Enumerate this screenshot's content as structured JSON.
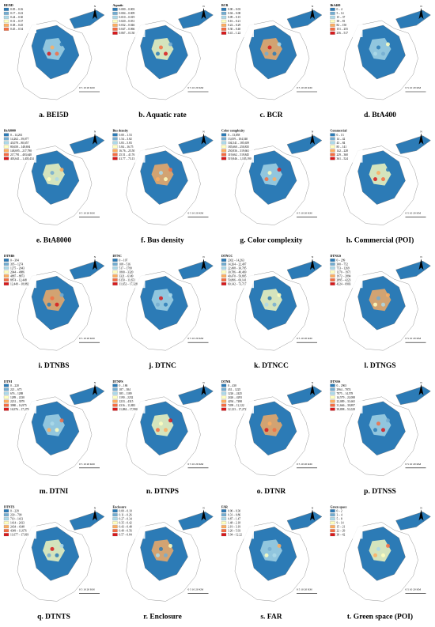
{
  "palette": [
    "#2c7bb6",
    "#74add1",
    "#abd9e9",
    "#ffffbf",
    "#fdae61",
    "#f46d43",
    "#d7191c"
  ],
  "north": "N",
  "scale_bar": "0  5  10      20 KM",
  "panels": [
    {
      "caption": "a. BEI5D",
      "legend_title": "BEI5D",
      "legend": [
        "0.05 – 0.16",
        "0.17 – 0.23",
        "0.24 – 0.30",
        "0.31 – 0.37",
        "0.38 – 0.45",
        "0.45 – 0.54"
      ]
    },
    {
      "caption": "b. Aquatic rate",
      "legend_title": "Aquatic",
      "legend": [
        "0.000 – 0.003",
        "0.004 – 0.009",
        "0.010 – 0.019",
        "0.020 – 0.031",
        "0.032 – 0.046",
        "0.047 – 0.066",
        "0.067 – 0.130"
      ]
    },
    {
      "caption": "c. BCR",
      "legend_title": "BCR",
      "legend": [
        "0.00 – 0.03",
        "0.04 – 0.08",
        "0.09 – 0.15",
        "0.16 – 0.21",
        "0.22 – 0.29",
        "0.30 – 0.40",
        "0.41 – 1.22"
      ]
    },
    {
      "caption": "d. BtA400",
      "legend_title": "BtA400",
      "legend": [
        "0 – 4",
        "5 – 14",
        "15 – 37",
        "38 – 81",
        "82 – 150",
        "151 – 255",
        "256 – 517"
      ]
    },
    {
      "caption": "e. BtA8000",
      "legend_title": "BtA8000",
      "legend": [
        "0 – 14,261",
        "14,262 – 39,077",
        "43,078 – 80,657",
        "80,658 – 148,694",
        "148,695 – 217,790",
        "217,791 – 403,640",
        "403,641 – 1,405,434"
      ]
    },
    {
      "caption": "f. Bus density",
      "legend_title": "Bus density",
      "legend": [
        "0.00 – 1.53",
        "1.54 – 3.82",
        "3.83 – 5.83",
        "5.84 – 16.75",
        "16.76 – 25.50",
        "25.51 – 41.76",
        "41.77 – 73.13"
      ]
    },
    {
      "caption": "g. Color complexity",
      "legend_title": "Color complexity",
      "legend": [
        "0 – 13,058",
        "13,059 – 104,540",
        "104,541 – 185,659",
        "185,660 – 250,835",
        "250,836 – 319,661",
        "319,662 – 519,845",
        "519,846 – 1,105,190"
      ]
    },
    {
      "caption": "h. Commercial (POI)",
      "legend_title": "Commercial",
      "legend": [
        "0 – 13",
        "14 – 42",
        "43 – 84",
        "85 – 141",
        "142 – 228",
        "229 – 360",
        "361 – 524"
      ]
    },
    {
      "caption": "i. DTNBS",
      "legend_title": "DTNBS",
      "legend": [
        "0 – 394",
        "395 – 1274",
        "1275 – 2043",
        "2044 – 4886",
        "4887 – 8873",
        "8874 – 12,448",
        "12,449 – 18,882"
      ]
    },
    {
      "caption": "j. DTNC",
      "legend_title": "DTNC",
      "legend": [
        "0 – 107",
        "108 – 516",
        "517 – 1799",
        "1800 – 3320",
        "3321 – 6149",
        "6150 – 11,651",
        "11,652 – 17,328"
      ]
    },
    {
      "caption": "k. DTNCC",
      "legend_title": "DTNCC",
      "legend": [
        "2302 – 14,263",
        "14,264 – 22,497",
        "22,498 – 30,785",
        "30,786 – 40,469",
        "40,470 – 50,805",
        "50,806 – 60,141",
        "60,142 – 73,717"
      ]
    },
    {
      "caption": "l. DTNGS",
      "legend_title": "DTNGS",
      "legend": [
        "0 – 299",
        "300 – 752",
        "753 – 1269",
        "1270 – 1971",
        "1972 – 2894",
        "2895 – 4223",
        "4224 – 6903"
      ]
    },
    {
      "caption": "m. DTNI",
      "legend_title": "DTNI",
      "legend": [
        "0 – 220",
        "221 – 675",
        "676 – 1288",
        "1289 – 2230",
        "2231 – 3979",
        "3980 – 16,975",
        "16,976 – 17,279"
      ]
    },
    {
      "caption": "n. DTNPS",
      "legend_title": "DTNPS",
      "legend": [
        "0 – 186",
        "187 – 384",
        "385 – 1189",
        "1190 – 2232",
        "2233 – 4315",
        "4316 – 11,883",
        "11,884 – 17,990"
      ]
    },
    {
      "caption": "o. DTNR",
      "legend_title": "DTNR",
      "legend": [
        "0 – 430",
        "431 – 1225",
        "1226 – 2425",
        "2426 – 4293",
        "4294 – 7498",
        "7499 – 12,122",
        "12,123 – 17,272"
      ]
    },
    {
      "caption": "p. DTNSS",
      "legend_title": "DTNSS",
      "legend": [
        "0 – 2963",
        "2964 – 7874",
        "7875 – 14,578",
        "14,579 – 22,088",
        "22,089 – 31,665",
        "31,666 – 39,897",
        "39,898 – 51,029"
      ]
    },
    {
      "caption": "q. DTNTS",
      "legend_title": "DTNTS",
      "legend": [
        "0 – 229",
        "230 – 709",
        "710 – 1413",
        "1414 – 2433",
        "2434 – 4348",
        "4349 – 11,676",
        "11,677 – 17,819"
      ]
    },
    {
      "caption": "r. Enclosure",
      "legend_title": "Enclosure",
      "legend": [
        "0.00 – 0.10",
        "0.11 – 0.26",
        "0.27 – 0.34",
        "0.35 – 0.42",
        "0.43 – 0.48",
        "0.49 – 0.56",
        "0.57 – 0.84"
      ]
    },
    {
      "caption": "s. FAR",
      "legend_title": "FAR",
      "legend": [
        "0.00 – 0.30",
        "0.31 – 0.86",
        "0.87 – 1.47",
        "1.48 – 2.18",
        "2.19 – 3.19",
        "3.20 – 5.93",
        "5.94 – 12.22"
      ]
    },
    {
      "caption": "t. Green space (POI)",
      "legend_title": "Green space",
      "legend": [
        "0 – 2",
        "3 – 4",
        "5 – 8",
        "9 – 14",
        "15 – 21",
        "22 – 29",
        "30 – 42"
      ]
    }
  ]
}
